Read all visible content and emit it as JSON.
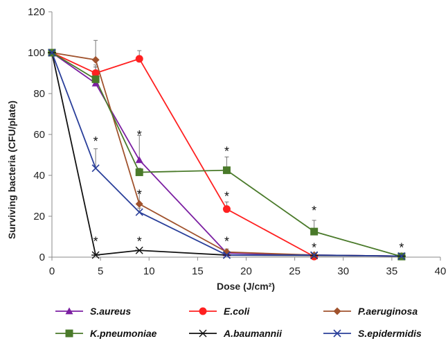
{
  "chart_data": {
    "type": "line",
    "title": "",
    "xlabel": "Dose (J/cm²)",
    "ylabel": "Surviving bacteria (CFU/plate)",
    "xlim": [
      0,
      40
    ],
    "ylim": [
      0,
      120
    ],
    "xticks": [
      0,
      5,
      10,
      15,
      20,
      25,
      30,
      35,
      40
    ],
    "yticks": [
      0,
      20,
      40,
      60,
      80,
      100,
      120
    ],
    "grid": false,
    "legend_position": "bottom",
    "series": [
      {
        "name": "S.aureus",
        "color": "#7b1fa2",
        "marker": "triangle",
        "points": [
          {
            "x": 0,
            "y": 100
          },
          {
            "x": 4.5,
            "y": 85,
            "err": 8
          },
          {
            "x": 9,
            "y": 47.5,
            "err": 12
          },
          {
            "x": 18,
            "y": 2,
            "err": 1
          },
          {
            "x": 27,
            "y": 1
          },
          {
            "x": 36,
            "y": 0.5
          }
        ]
      },
      {
        "name": "E.coli",
        "color": "#ff2020",
        "marker": "circle",
        "points": [
          {
            "x": 0,
            "y": 100
          },
          {
            "x": 4.5,
            "y": 90,
            "err": 4
          },
          {
            "x": 9,
            "y": 97,
            "err": 4
          },
          {
            "x": 18,
            "y": 23.5,
            "err": 3.5
          },
          {
            "x": 27,
            "y": 0.3
          }
        ]
      },
      {
        "name": "P.aeruginosa",
        "color": "#a0522d",
        "marker": "diamond",
        "points": [
          {
            "x": 0,
            "y": 100
          },
          {
            "x": 4.5,
            "y": 96.5,
            "err": 9.5
          },
          {
            "x": 9,
            "y": 26,
            "err": 6
          },
          {
            "x": 18,
            "y": 2.5,
            "err": 1.5
          },
          {
            "x": 27,
            "y": 1
          },
          {
            "x": 36,
            "y": 0.5
          }
        ]
      },
      {
        "name": "K.pneumoniae",
        "color": "#4a7a2a",
        "marker": "square",
        "points": [
          {
            "x": 0,
            "y": 100
          },
          {
            "x": 4.5,
            "y": 87,
            "err": 6
          },
          {
            "x": 9,
            "y": 41.5,
            "err": 2
          },
          {
            "x": 18,
            "y": 42.5,
            "err": 6.5
          },
          {
            "x": 27,
            "y": 12.5,
            "err": 5.5
          },
          {
            "x": 36,
            "y": 0.3
          }
        ]
      },
      {
        "name": "A.baumannii",
        "color": "#111111",
        "marker": "asterisk",
        "points": [
          {
            "x": 0,
            "y": 100
          },
          {
            "x": 4.5,
            "y": 1
          },
          {
            "x": 9,
            "y": 3.3
          },
          {
            "x": 18,
            "y": 1
          },
          {
            "x": 27,
            "y": 0.8
          },
          {
            "x": 36,
            "y": 0.5
          }
        ]
      },
      {
        "name": "S.epidermidis",
        "color": "#2a3f9a",
        "marker": "x",
        "points": [
          {
            "x": 0,
            "y": 100
          },
          {
            "x": 4.5,
            "y": 43.5,
            "err": 9.5
          },
          {
            "x": 9,
            "y": 22,
            "err": 2
          },
          {
            "x": 18,
            "y": 1
          },
          {
            "x": 27,
            "y": 1
          },
          {
            "x": 36,
            "y": 0.5
          }
        ]
      }
    ],
    "annotations": [
      {
        "text": "*",
        "x": 4.5,
        "y": 58
      },
      {
        "text": "*",
        "x": 4.5,
        "y": 9
      },
      {
        "text": "*",
        "x": 9,
        "y": 61
      },
      {
        "text": "*",
        "x": 9,
        "y": 32
      },
      {
        "text": "*",
        "x": 9,
        "y": 9
      },
      {
        "text": "*",
        "x": 18,
        "y": 53
      },
      {
        "text": "*",
        "x": 18,
        "y": 31
      },
      {
        "text": "*",
        "x": 18,
        "y": 9
      },
      {
        "text": "*",
        "x": 27,
        "y": 24
      },
      {
        "text": "*",
        "x": 27,
        "y": 6
      },
      {
        "text": "*",
        "x": 36,
        "y": 6
      }
    ]
  }
}
